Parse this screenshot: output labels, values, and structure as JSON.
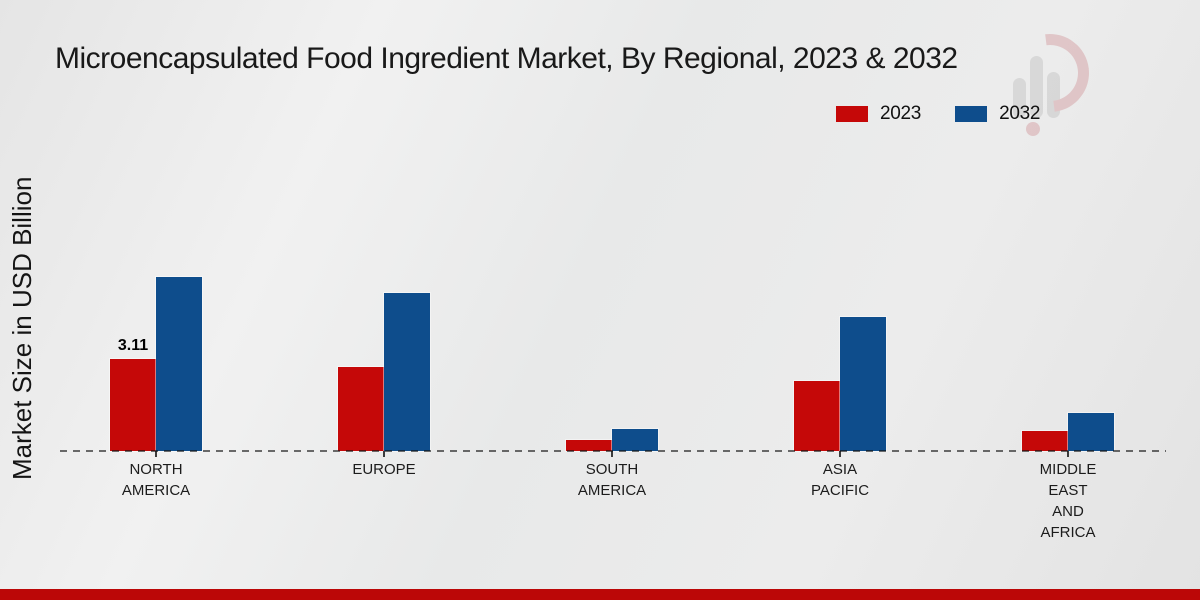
{
  "title": "Microencapsulated Food Ingredient Market, By Regional, 2023 & 2032",
  "y_axis_label": "Market Size in USD Billion",
  "legend": {
    "items": [
      {
        "label": "2023",
        "color": "#c50808"
      },
      {
        "label": "2032",
        "color": "#0e4d8c"
      }
    ]
  },
  "footer": {
    "color": "#bb0707"
  },
  "watermark": {
    "name": "market-research-chart-logo"
  },
  "chart_data": {
    "type": "bar",
    "title": "Microencapsulated Food Ingredient Market, By Regional, 2023 & 2032",
    "xlabel": "",
    "ylabel": "Market Size in USD Billion",
    "categories": [
      "NORTH AMERICA",
      "EUROPE",
      "SOUTH AMERICA",
      "ASIA PACIFIC",
      "MIDDLE EAST AND AFRICA"
    ],
    "category_display_lines": [
      [
        "NORTH",
        "AMERICA"
      ],
      [
        "EUROPE"
      ],
      [
        "SOUTH",
        "AMERICA"
      ],
      [
        "ASIA",
        "PACIFIC"
      ],
      [
        "MIDDLE",
        "EAST",
        "AND",
        "AFRICA"
      ]
    ],
    "series": [
      {
        "name": "2023",
        "color": "#c50808",
        "values": [
          3.11,
          2.85,
          0.37,
          2.37,
          0.68
        ]
      },
      {
        "name": "2032",
        "color": "#0e4d8c",
        "values": [
          5.88,
          5.34,
          0.74,
          4.53,
          1.28
        ]
      }
    ],
    "data_labels": [
      {
        "series_index": 0,
        "category_index": 0,
        "text": "3.11"
      }
    ],
    "ylim": [
      0,
      6.5
    ],
    "grid": false,
    "legend_position": "top-right",
    "baseline_style": "dashed"
  }
}
